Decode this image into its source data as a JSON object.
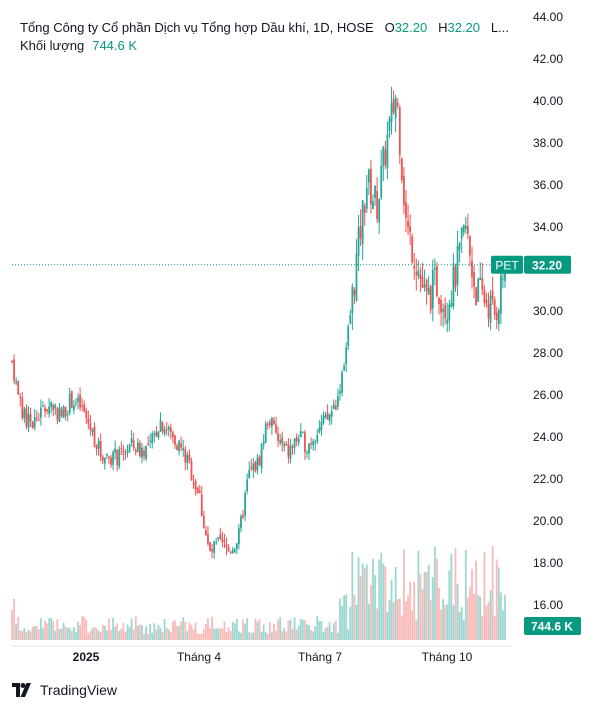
{
  "header": {
    "title": "Tổng Công ty Cổ phần Dịch vụ Tổng hợp Dầu khí, 1D, HOSE",
    "o_label": "O",
    "o_value": "32.20",
    "h_label": "H",
    "h_value": "32.20",
    "rest": "L...",
    "volume_label": "Khối lượng",
    "volume_value": "744.6 K"
  },
  "badges": {
    "ticker": "PET",
    "last_price": "32.20",
    "volume": "744.6 K"
  },
  "colors": {
    "up": "#26a69a",
    "down": "#ef5350",
    "badge": "#089981",
    "price_line": "#089981"
  },
  "branding": {
    "name": "TradingView"
  },
  "chart_data": {
    "type": "candlestick",
    "y_axis_side": "right",
    "price_ticks": [
      "16.00",
      "18.00",
      "20.00",
      "22.00",
      "24.00",
      "26.00",
      "28.00",
      "30.00",
      "32.00",
      "34.00",
      "36.00",
      "38.00",
      "40.00",
      "42.00",
      "44.00"
    ],
    "x_ticks": [
      "2025",
      "Tháng 4",
      "Tháng 7",
      "Tháng 10"
    ],
    "last_price": 32.2,
    "volume_last": "744.6 K",
    "price_path": [
      [
        "2024-11-18",
        27.6
      ],
      [
        "2024-11-25",
        25.0
      ],
      [
        "2024-12-02",
        24.6
      ],
      [
        "2024-12-09",
        25.2
      ],
      [
        "2024-12-16",
        25.6
      ],
      [
        "2024-12-23",
        25.0
      ],
      [
        "2024-12-30",
        25.8
      ],
      [
        "2025-01-06",
        25.4
      ],
      [
        "2025-01-13",
        24.4
      ],
      [
        "2025-01-20",
        23.2
      ],
      [
        "2025-02-03",
        23.0
      ],
      [
        "2025-02-10",
        23.6
      ],
      [
        "2025-02-17",
        23.4
      ],
      [
        "2025-02-24",
        23.5
      ],
      [
        "2025-03-03",
        24.8
      ],
      [
        "2025-03-10",
        24.2
      ],
      [
        "2025-03-17",
        23.6
      ],
      [
        "2025-03-24",
        22.6
      ],
      [
        "2025-03-31",
        21.2
      ],
      [
        "2025-04-07",
        18.4
      ],
      [
        "2025-04-14",
        18.9
      ],
      [
        "2025-04-21",
        18.6
      ],
      [
        "2025-04-28",
        19.2
      ],
      [
        "2025-05-05",
        22.2
      ],
      [
        "2025-05-12",
        22.8
      ],
      [
        "2025-05-19",
        25.0
      ],
      [
        "2025-05-26",
        23.8
      ],
      [
        "2025-06-02",
        23.2
      ],
      [
        "2025-06-09",
        24.0
      ],
      [
        "2025-06-16",
        23.6
      ],
      [
        "2025-06-23",
        24.4
      ],
      [
        "2025-06-30",
        24.8
      ],
      [
        "2025-07-07",
        25.8
      ],
      [
        "2025-07-14",
        28.6
      ],
      [
        "2025-07-21",
        32.6
      ],
      [
        "2025-07-28",
        36.2
      ],
      [
        "2025-08-04",
        35.0
      ],
      [
        "2025-08-11",
        38.0
      ],
      [
        "2025-08-18",
        40.4
      ],
      [
        "2025-08-25",
        34.0
      ],
      [
        "2025-09-01",
        32.4
      ],
      [
        "2025-09-08",
        30.4
      ],
      [
        "2025-09-15",
        31.4
      ],
      [
        "2025-09-22",
        30.2
      ],
      [
        "2025-09-29",
        31.8
      ],
      [
        "2025-10-06",
        34.0
      ],
      [
        "2025-10-13",
        31.0
      ],
      [
        "2025-10-20",
        30.6
      ],
      [
        "2025-10-27",
        29.8
      ],
      [
        "2025-11-03",
        32.2
      ]
    ]
  }
}
